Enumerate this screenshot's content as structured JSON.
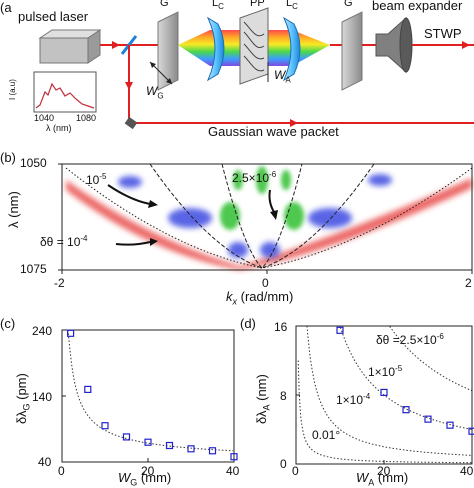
{
  "panel_a": {
    "tag": "(a",
    "laser_label": "pulsed laser",
    "grating_left": "G",
    "lens_left_main": "L",
    "lens_left_sub": "C",
    "pp_label": "PP",
    "lens_right_main": "L",
    "lens_right_sub": "C",
    "grating_right": "G",
    "expander_label": "beam expander",
    "stwp_label": "STWP",
    "wg_main": "W",
    "wg_sub": "G",
    "wa_main": "W",
    "wa_sub": "A",
    "gaussian_label": "Gaussian wave packet",
    "inset": {
      "ylabel": "I (a.u)",
      "xlabel": "λ (nm)",
      "ticks": [
        "1040",
        "1080"
      ]
    }
  },
  "panel_b": {
    "tag": "(b)",
    "ylabel": "λ (nm)",
    "xlabel_main": "k",
    "xlabel_sub": "x",
    "xlabel_unit": " (rad/mm)",
    "yticks": [
      "1050",
      "1075"
    ],
    "xticks": [
      "-2",
      "0",
      "2"
    ],
    "annotations": {
      "a1": "10",
      "a1_sup": "-5",
      "a2": "2.5×10",
      "a2_sup": "-6",
      "a3": "δθ = 10",
      "a3_sup": "-4"
    },
    "colors": {
      "red": "#e53935",
      "blue": "#2233dd",
      "green": "#22bb22"
    }
  },
  "panel_c": {
    "tag": "(c)",
    "ylabel_main": "δλ",
    "ylabel_sub": "G",
    "ylabel_unit": " (pm)",
    "xlabel_main": "W",
    "xlabel_sub": "G",
    "xlabel_unit": " (mm)",
    "yticks": [
      "240",
      "140",
      "40"
    ],
    "xticks": [
      "0",
      "20",
      "40"
    ]
  },
  "panel_d": {
    "tag": "(d)",
    "ylabel_main": "δλ",
    "ylabel_sub": "A",
    "ylabel_unit": " (nm)",
    "xlabel_main": "W",
    "xlabel_sub": "A",
    "xlabel_unit": " (mm)",
    "yticks": [
      "16",
      "8",
      "0"
    ],
    "xticks": [
      "0",
      "20",
      "40"
    ],
    "curve_labels": {
      "c1": "δθ =2.5×10",
      "c1_sup": "-6",
      "c2": "1×10",
      "c2_sup": "-5",
      "c3": "1×10",
      "c3_sup": "-4",
      "c4": "0.01°"
    }
  },
  "chart_data": [
    {
      "type": "scatter",
      "ylabel": "δλG (pm)",
      "xlabel": "WG (mm)",
      "xlim": [
        0,
        40
      ],
      "ylim": [
        40,
        240
      ],
      "series": [
        {
          "x": [
            2,
            6,
            10,
            15,
            20,
            25,
            30,
            35,
            40
          ],
          "y": [
            235,
            150,
            95,
            78,
            70,
            65,
            60,
            57,
            48
          ]
        }
      ]
    },
    {
      "type": "scatter",
      "ylabel": "δλA (nm)",
      "xlabel": "WA (mm)",
      "xlim": [
        0,
        40
      ],
      "ylim": [
        0,
        16
      ],
      "series": [
        {
          "x": [
            10,
            20,
            25,
            30,
            35,
            40
          ],
          "y": [
            15.5,
            8.3,
            6.3,
            5.2,
            4.5,
            3.8
          ]
        }
      ]
    }
  ]
}
